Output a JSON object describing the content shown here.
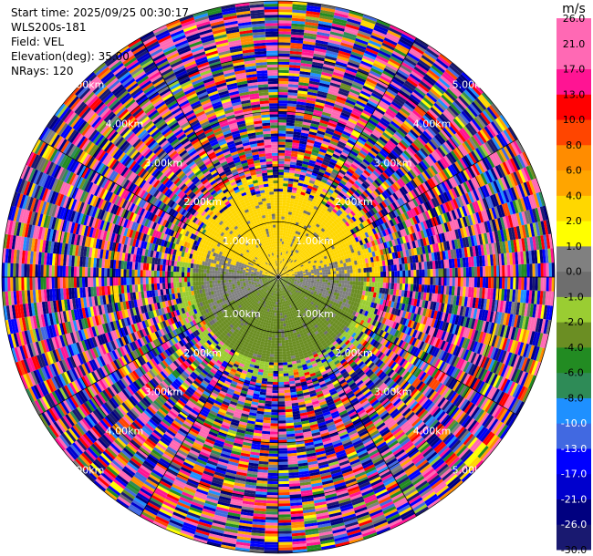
{
  "header": {
    "start_time": "Start time: 2025/09/25 00:30:17",
    "instrument": "WLS200s-181",
    "field": "Field: VEL",
    "elevation": "Elevation(deg): 35.00",
    "nrays": "NRays: 120"
  },
  "chart_data": {
    "type": "heatmap",
    "projection": "polar-ppi",
    "field": "VEL",
    "units": "m/s",
    "nrays": 120,
    "elevation_deg": 35.0,
    "max_range_km": 5.0,
    "range_rings_km": [
      1,
      2,
      3,
      4,
      5
    ],
    "range_ring_labels": [
      "1.00km",
      "2.00km",
      "3.00km",
      "4.00km",
      "5.00km"
    ],
    "spoke_angles_deg": [
      0,
      30,
      60,
      90,
      120,
      150,
      180,
      210,
      240,
      270,
      300,
      330
    ],
    "colorbar_levels": [
      -30.0,
      -26.0,
      -21.0,
      -17.0,
      -13.0,
      -10.0,
      -8.0,
      -6.0,
      -4.0,
      -2.0,
      -1.0,
      0.0,
      1.0,
      2.0,
      4.0,
      6.0,
      8.0,
      10.0,
      13.0,
      17.0,
      21.0,
      26.0
    ],
    "colorbar_tick_labels": [
      "-30.0",
      "-26.0",
      "-21.0",
      "-17.0",
      "-13.0",
      "-10.0",
      "-8.0",
      "-6.0",
      "-4.0",
      "-2.0",
      "-1.0",
      "0.0",
      "1.0",
      "2.0",
      "4.0",
      "6.0",
      "8.0",
      "10.0",
      "13.0",
      "17.0",
      "21.0",
      "26.0"
    ],
    "colorbar_colors": [
      "#191970",
      "#000080",
      "#0000cd",
      "#0000ff",
      "#4169e1",
      "#1e90ff",
      "#2e8b57",
      "#228b22",
      "#6b8e23",
      "#9acd32",
      "#6e6e6e",
      "#808080",
      "#ffff00",
      "#ffd700",
      "#ffa500",
      "#ff8c00",
      "#ff4500",
      "#ff0000",
      "#ff1493",
      "#ff69b4",
      "#ff69b4"
    ],
    "region_summary": [
      {
        "range_km": [
          0.0,
          1.6
        ],
        "sector": "north (az 280-90)",
        "velocity_ms": 2.0
      },
      {
        "range_km": [
          0.0,
          1.6
        ],
        "sector": "south (az 90-280)",
        "velocity_ms": -2.0
      },
      {
        "range_km": [
          0.3,
          1.4
        ],
        "sector": "east-west band",
        "velocity_ms": 0.0
      },
      {
        "range_km": [
          2.0,
          5.0
        ],
        "sector": "all",
        "velocity_ms": "noise (mixed -30 to 26)"
      }
    ]
  }
}
